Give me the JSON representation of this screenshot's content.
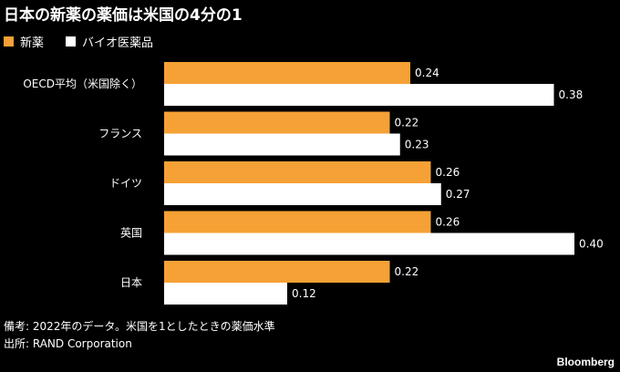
{
  "chart_data": {
    "type": "bar",
    "orientation": "horizontal",
    "title": "日本の新薬の薬価は米国の4分の1",
    "categories": [
      "OECD平均（米国除く）",
      "フランス",
      "ドイツ",
      "英国",
      "日本"
    ],
    "series": [
      {
        "name": "新薬",
        "color": "#f5a135",
        "values": [
          0.24,
          0.22,
          0.26,
          0.26,
          0.22
        ]
      },
      {
        "name": "バイオ医薬品",
        "color": "#ffffff",
        "values": [
          0.38,
          0.23,
          0.27,
          0.4,
          0.12
        ]
      }
    ],
    "xlim": [
      0,
      0.4
    ],
    "grid": false,
    "legend_position": "top-left"
  },
  "legend": {
    "position": "top-left"
  },
  "footer": {
    "note": "備考: 2022年のデータ。米国を1としたときの薬価水準",
    "source": "出所: RAND Corporation",
    "brand": "Bloomberg"
  },
  "colors": {
    "background": "#000000",
    "text": "#ffffff",
    "accent": "#f5a135"
  }
}
